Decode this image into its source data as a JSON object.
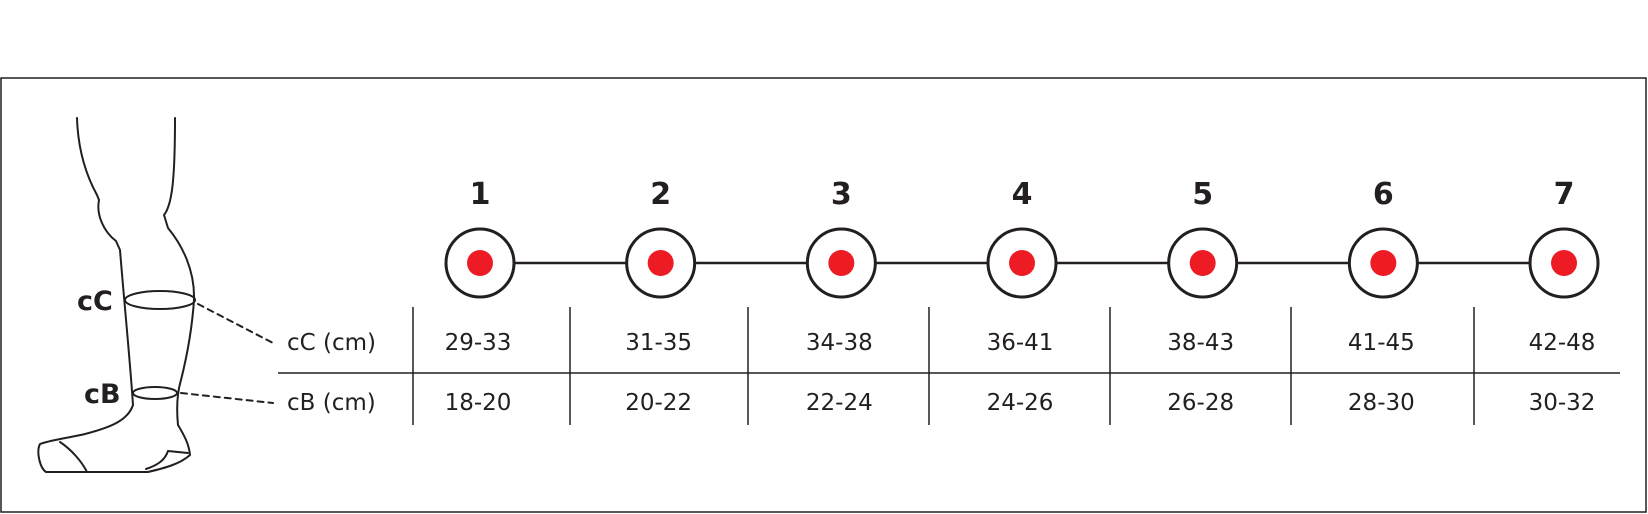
{
  "leg": {
    "calf_label": "cC",
    "ankle_label": "cB"
  },
  "rows": {
    "calf_label": "cC (cm)",
    "ankle_label": "cB (cm)"
  },
  "sizes": [
    {
      "size": "1",
      "cC": "29-33",
      "cB": "18-20"
    },
    {
      "size": "2",
      "cC": "31-35",
      "cB": "20-22"
    },
    {
      "size": "3",
      "cC": "34-38",
      "cB": "22-24"
    },
    {
      "size": "4",
      "cC": "36-41",
      "cB": "24-26"
    },
    {
      "size": "5",
      "cC": "38-43",
      "cB": "26-28"
    },
    {
      "size": "6",
      "cC": "41-45",
      "cB": "28-30"
    },
    {
      "size": "7",
      "cC": "42-48",
      "cB": "30-32"
    }
  ],
  "colors": {
    "dot": "#ed1c24",
    "line": "#231f20"
  }
}
